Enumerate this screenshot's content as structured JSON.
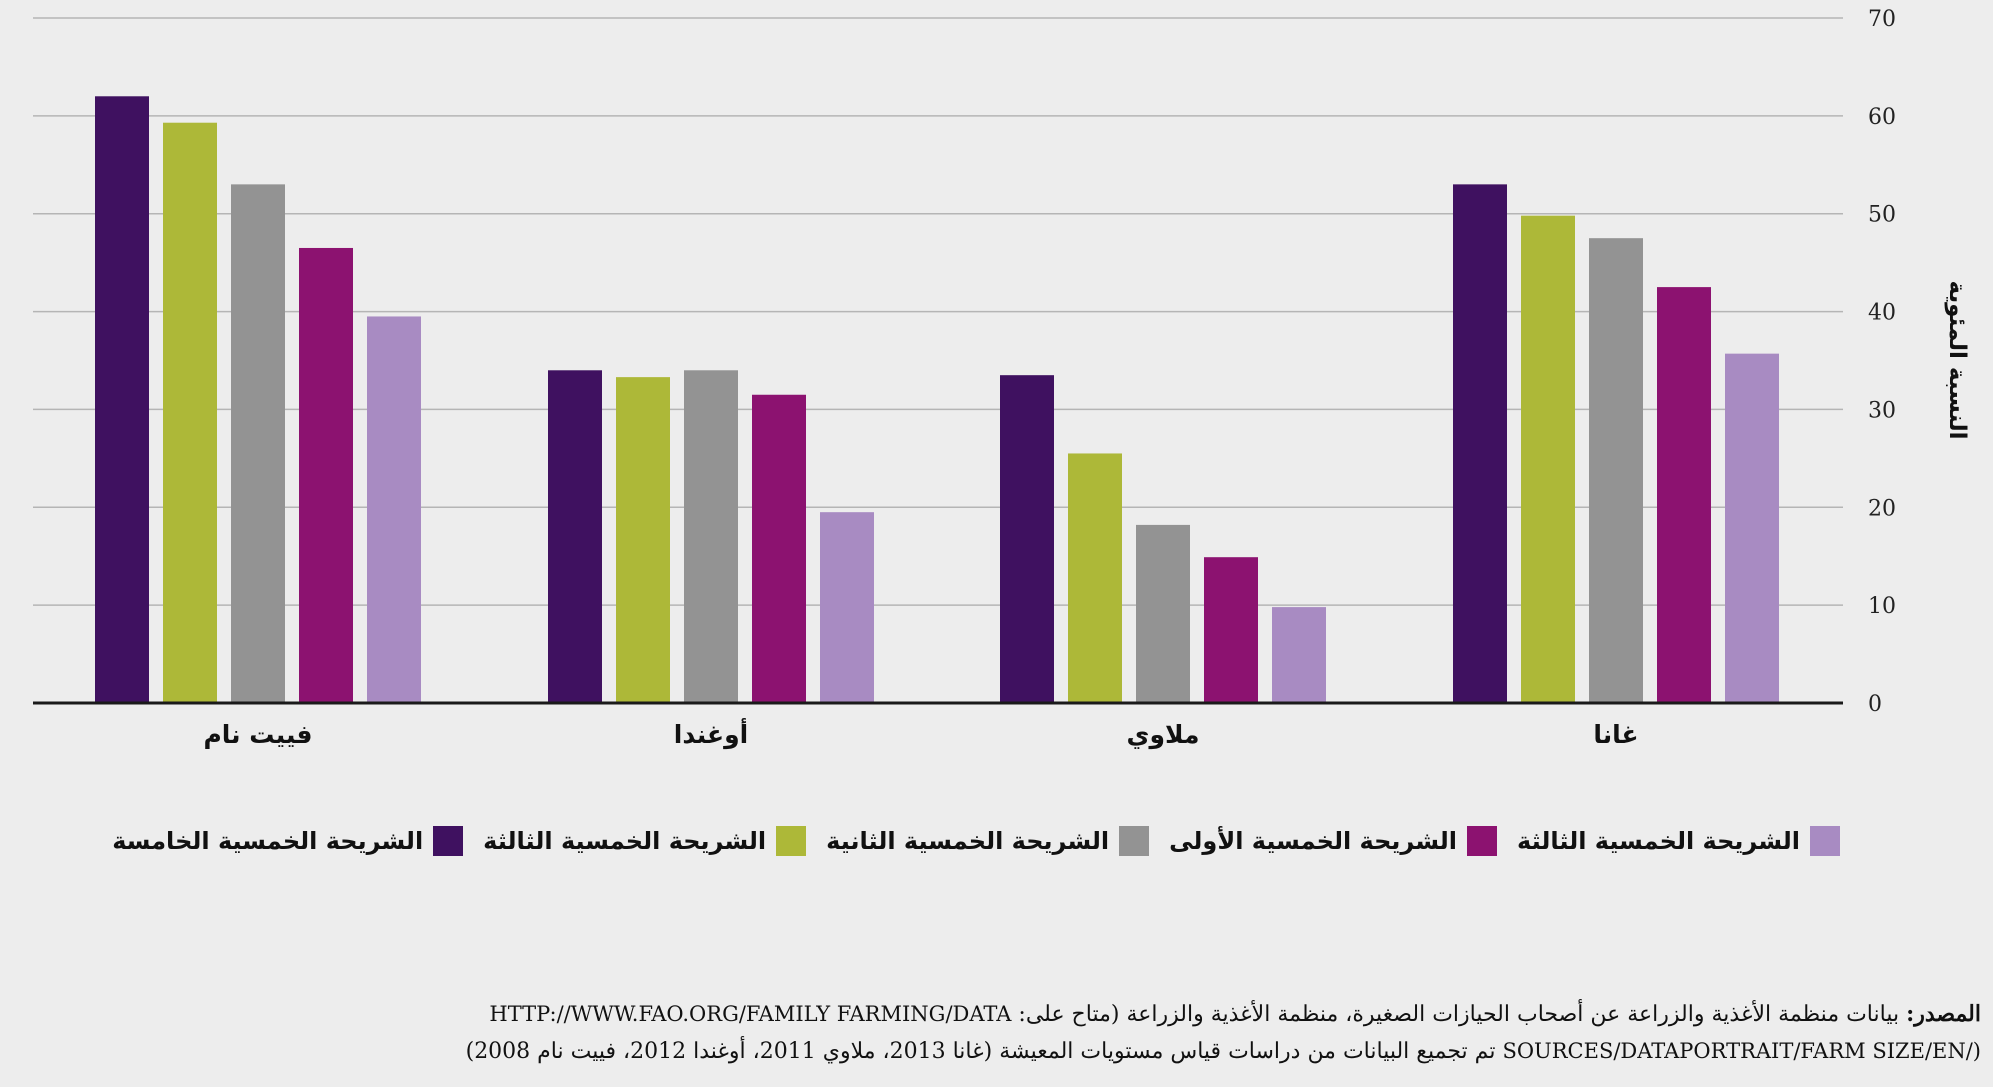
{
  "chart_data": {
    "type": "bar",
    "categories": [
      "فييت نام",
      "أوغندا",
      "ملاوي",
      "غانا"
    ],
    "series": [
      {
        "name": "الشريحة الخمسية الخامسة",
        "color": "#3f1160",
        "values": [
          62,
          34,
          33.5,
          53
        ]
      },
      {
        "name": "الشريحة الخمسية الثالثة",
        "color": "#adb838",
        "values": [
          59.3,
          33.3,
          25.5,
          49.8
        ]
      },
      {
        "name": "الشريحة الخمسية الثانية",
        "color": "#939393",
        "values": [
          53,
          34,
          18.2,
          47.5
        ]
      },
      {
        "name": "الشريحة الخمسية الأولى",
        "color": "#8c1270",
        "values": [
          46.5,
          31.5,
          14.9,
          42.5
        ]
      },
      {
        "name": "الشريحة الخمسية الثالثة",
        "color": "#a88bc2",
        "values": [
          39.5,
          19.5,
          9.8,
          35.7
        ]
      }
    ],
    "legend_order": [
      4,
      3,
      2,
      1,
      0
    ],
    "yticks": [
      0,
      10,
      20,
      30,
      40,
      50,
      60,
      70
    ],
    "ylim": [
      0,
      70
    ],
    "ylabel": "النسبة المئوية",
    "xlabel": "",
    "grid": true,
    "legend_position": "bottom"
  },
  "source": {
    "prefix": "المصدر:",
    "line1_text": "بيانات منظمة الأغذية والزراعة عن أصحاب الحيازات الصغيرة، منظمة الأغذية والزراعة (متاح على:",
    "line1_url": "HTTP://WWW.FAO.ORG/FAMILY FARMING/DATA",
    "line2_url": "SOURCES/DATAPORTRAIT/FARM SIZE/EN/)",
    "line2_text": "تم تجميع البيانات من دراسات قياس مستويات المعيشة (غانا 2013، ملاوي 2011، أوغندا 2012، فييت نام 2008)"
  }
}
